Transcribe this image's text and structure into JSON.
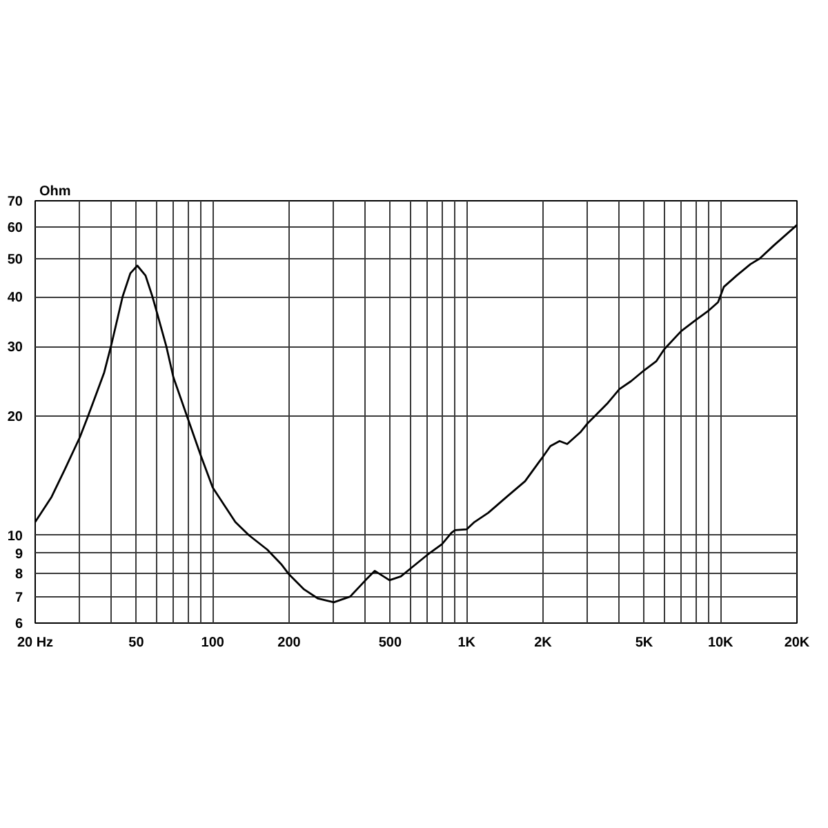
{
  "chart_data": {
    "type": "line",
    "ylabel": "Ohm",
    "x": [
      20,
      23.2,
      26.2,
      30,
      32.3,
      35.1,
      37.4,
      40,
      44.2,
      47.4,
      50.5,
      54.4,
      57.9,
      60,
      65.7,
      70,
      79.2,
      89.8,
      100,
      122.8,
      139,
      164,
      186,
      200,
      229,
      260,
      300,
      348,
      400,
      435,
      497,
      551,
      600,
      700,
      800,
      872,
      900,
      1000,
      1074,
      1218,
      1438,
      1700,
      1926,
      2000,
      2138,
      2324,
      2490,
      2804,
      3000,
      3200,
      3600,
      4000,
      4441,
      5000,
      5580,
      6000,
      7000,
      8000,
      9000,
      9780,
      10300,
      11574,
      13117,
      14268,
      16166,
      20000
    ],
    "series": [
      {
        "color": "#000000",
        "values": [
          10.8,
          12.5,
          14.7,
          17.7,
          20,
          23.1,
          25.8,
          30.5,
          40.1,
          45.9,
          48,
          45.3,
          40.1,
          37,
          30,
          25.1,
          20,
          15.9,
          13.2,
          10.8,
          10,
          9.2,
          8.46,
          7.96,
          7.3,
          6.92,
          6.77,
          7,
          7.7,
          8.13,
          7.7,
          7.87,
          8.23,
          8.92,
          9.5,
          10.15,
          10.3,
          10.35,
          10.8,
          11.4,
          12.5,
          13.7,
          15.3,
          15.8,
          16.8,
          17.3,
          17,
          18.2,
          19.2,
          20,
          21.6,
          23.4,
          24.5,
          26.1,
          27.5,
          29.5,
          32.8,
          35,
          37,
          38.8,
          42.4,
          45.3,
          48.4,
          50,
          53.9,
          60.8
        ]
      }
    ],
    "xlim": [
      20,
      20000
    ],
    "ylim": [
      6,
      70
    ],
    "xticks": [
      {
        "value": 20,
        "label": "20 Hz"
      },
      {
        "value": 30,
        "label": null
      },
      {
        "value": 40,
        "label": null
      },
      50,
      {
        "value": 60,
        "label": null
      },
      {
        "value": 70,
        "label": null
      },
      {
        "value": 80,
        "label": null
      },
      {
        "value": 90,
        "label": null
      },
      100,
      200,
      {
        "value": 300,
        "label": null
      },
      {
        "value": 400,
        "label": null
      },
      500,
      {
        "value": 600,
        "label": null
      },
      {
        "value": 700,
        "label": null
      },
      {
        "value": 800,
        "label": null
      },
      {
        "value": 900,
        "label": null
      },
      {
        "value": 1000,
        "label": "1K"
      },
      {
        "value": 2000,
        "label": "2K"
      },
      {
        "value": 3000,
        "label": null
      },
      {
        "value": 4000,
        "label": null
      },
      {
        "value": 5000,
        "label": "5K"
      },
      {
        "value": 6000,
        "label": null
      },
      {
        "value": 7000,
        "label": null
      },
      {
        "value": 8000,
        "label": null
      },
      {
        "value": 9000,
        "label": null
      },
      {
        "value": 10000,
        "label": "10K"
      },
      {
        "value": 20000,
        "label": "20K"
      }
    ],
    "yticks": [
      6,
      7,
      8,
      9,
      10,
      20,
      30,
      40,
      50,
      60,
      70
    ],
    "log": "xy",
    "grid": true,
    "line_style": "solid"
  }
}
